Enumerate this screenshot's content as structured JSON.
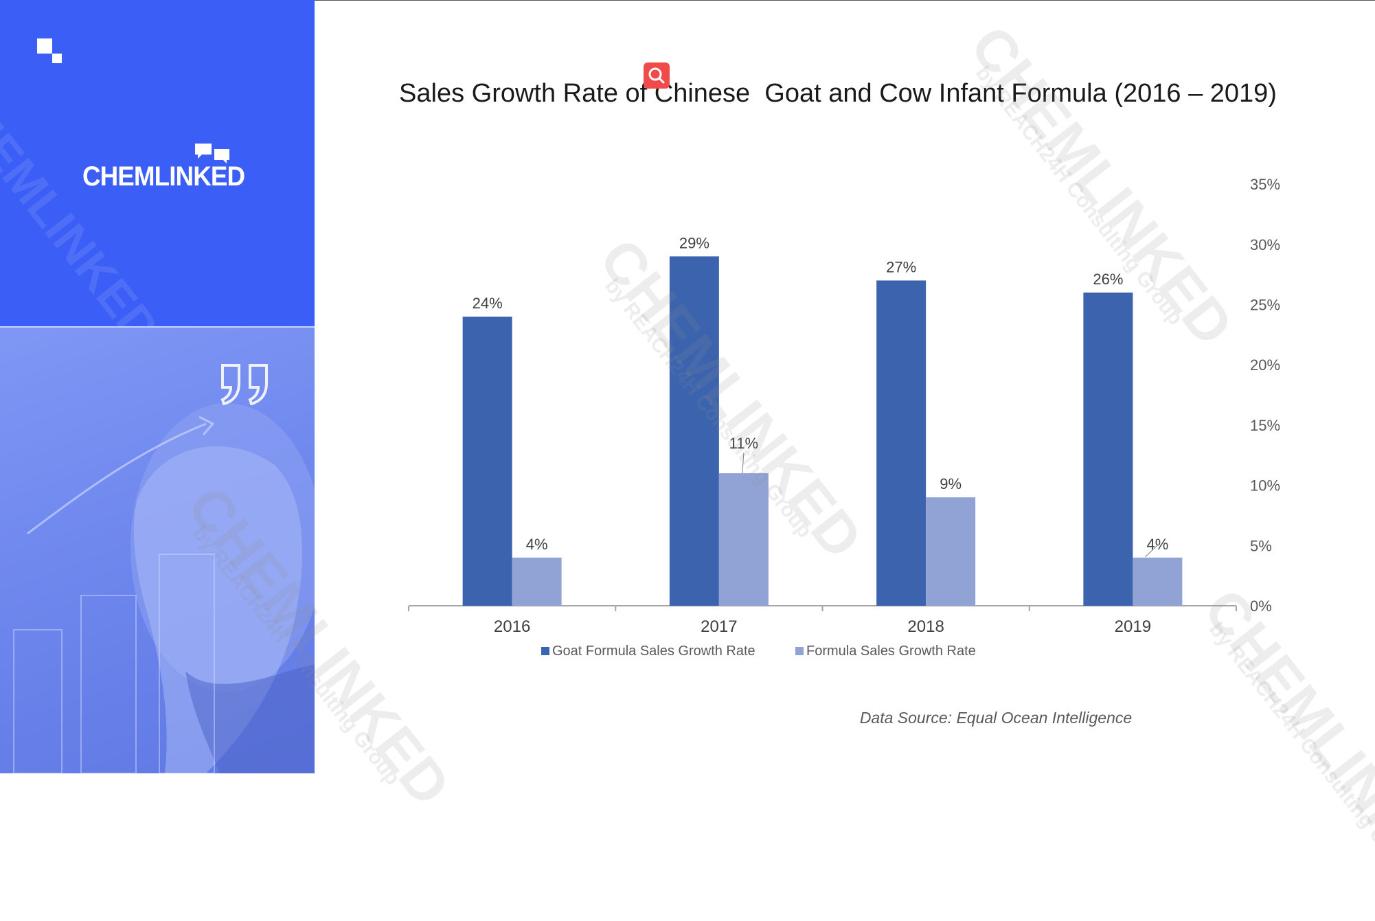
{
  "brand": {
    "name": "CHEMLINKED",
    "watermark_main": "CHEMLINKED",
    "watermark_sub": "by REACH24H Consulting Group"
  },
  "colors": {
    "sidebar": "#3a5ef6",
    "goat": "#3c64ae",
    "formula": "#91a3d4",
    "axis": "#a6a6a6"
  },
  "icons": {
    "search": "search-icon",
    "quote": "quote-icon",
    "logo_mark": "logo-square-icon"
  },
  "source": "Data Source: Equal Ocean Intelligence",
  "chart_data": {
    "type": "bar",
    "title": "Sales Growth Rate of Chinese  Goat and Cow Infant Formula (2016 – 2019)",
    "categories": [
      "2016",
      "2017",
      "2018",
      "2019"
    ],
    "series": [
      {
        "name": "Goat Formula Sales Growth Rate",
        "values": [
          24,
          29,
          27,
          26
        ],
        "labels": [
          "24%",
          "29%",
          "27%",
          "26%"
        ],
        "color": "#3c64ae"
      },
      {
        "name": "Formula Sales Growth Rate",
        "values": [
          4,
          11,
          9,
          4
        ],
        "labels": [
          "4%",
          "11%",
          "9%",
          "4%"
        ],
        "color": "#91a3d4"
      }
    ],
    "y_axis": {
      "position": "right",
      "ylim": [
        0,
        35
      ],
      "ticks": [
        0,
        5,
        10,
        15,
        20,
        25,
        30,
        35
      ],
      "tick_labels": [
        "0%",
        "5%",
        "10%",
        "15%",
        "20%",
        "25%",
        "30%",
        "35%"
      ]
    },
    "grid": false,
    "legend": "bottom"
  }
}
